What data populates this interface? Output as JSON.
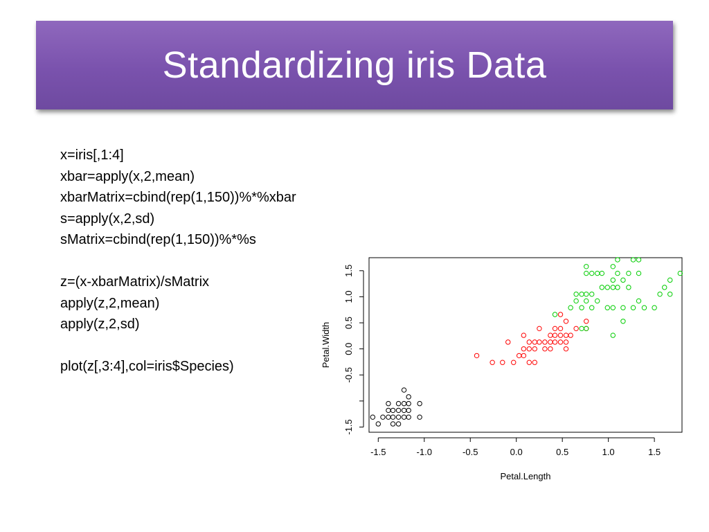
{
  "slide": {
    "title": "Standardizing iris Data",
    "code_lines": [
      "x=iris[,1:4]",
      "xbar=apply(x,2,mean)",
      "xbarMatrix=cbind(rep(1,150))%*%xbar",
      "s=apply(x,2,sd)",
      "sMatrix=cbind(rep(1,150))%*%s",
      "",
      "z=(x-xbarMatrix)/sMatrix",
      "apply(z,2,mean)",
      "apply(z,2,sd)",
      "",
      "plot(z[,3:4],col=iris$Species)"
    ]
  },
  "colors": {
    "title_bg": "#7a52ad",
    "setosa": "#000000",
    "versicolor": "#ff0000",
    "virginica": "#00cd00"
  },
  "chart_data": {
    "type": "scatter",
    "xlabel": "Petal.Length",
    "ylabel": "Petal.Width",
    "xlim": [
      -1.6,
      1.8
    ],
    "ylim": [
      -1.6,
      1.75
    ],
    "x_ticks": [
      -1.5,
      -1.0,
      -0.5,
      0.0,
      0.5,
      1.0,
      1.5
    ],
    "x_tick_labels": [
      "-1.5",
      "-1.0",
      "-0.5",
      "0.0",
      "0.5",
      "1.0",
      "1.5"
    ],
    "y_ticks": [
      -1.5,
      -1.0,
      -0.5,
      0.0,
      0.5,
      1.0,
      1.5
    ],
    "y_tick_labels": [
      "-1.5",
      "",
      "-0.5",
      "0.0",
      "0.5",
      "1.0",
      "1.5"
    ],
    "grid": false,
    "series": [
      {
        "color": "#000000",
        "points": [
          [
            -1.56,
            -1.31
          ],
          [
            -1.5,
            -1.44
          ],
          [
            -1.45,
            -1.31
          ],
          [
            -1.39,
            -1.31
          ],
          [
            -1.39,
            -1.18
          ],
          [
            -1.39,
            -1.05
          ],
          [
            -1.34,
            -1.31
          ],
          [
            -1.34,
            -1.44
          ],
          [
            -1.34,
            -1.18
          ],
          [
            -1.28,
            -1.31
          ],
          [
            -1.28,
            -1.44
          ],
          [
            -1.28,
            -1.18
          ],
          [
            -1.28,
            -1.05
          ],
          [
            -1.22,
            -1.31
          ],
          [
            -1.22,
            -1.18
          ],
          [
            -1.22,
            -1.05
          ],
          [
            -1.22,
            -0.79
          ],
          [
            -1.17,
            -1.31
          ],
          [
            -1.17,
            -1.18
          ],
          [
            -1.17,
            -1.05
          ],
          [
            -1.17,
            -0.92
          ],
          [
            -1.05,
            -1.31
          ],
          [
            -1.05,
            -1.05
          ]
        ]
      },
      {
        "color": "#ff0000",
        "points": [
          [
            -0.43,
            -0.13
          ],
          [
            -0.26,
            -0.26
          ],
          [
            -0.15,
            -0.26
          ],
          [
            -0.09,
            0.13
          ],
          [
            -0.03,
            -0.26
          ],
          [
            0.03,
            -0.13
          ],
          [
            0.08,
            0.0
          ],
          [
            0.08,
            -0.13
          ],
          [
            0.08,
            0.26
          ],
          [
            0.14,
            0.13
          ],
          [
            0.14,
            0.0
          ],
          [
            0.14,
            -0.26
          ],
          [
            0.2,
            0.13
          ],
          [
            0.2,
            0.0
          ],
          [
            0.2,
            -0.26
          ],
          [
            0.25,
            0.13
          ],
          [
            0.25,
            0.39
          ],
          [
            0.31,
            0.0
          ],
          [
            0.31,
            0.13
          ],
          [
            0.37,
            0.26
          ],
          [
            0.37,
            0.13
          ],
          [
            0.37,
            0.0
          ],
          [
            0.42,
            0.39
          ],
          [
            0.42,
            0.26
          ],
          [
            0.42,
            0.13
          ],
          [
            0.48,
            0.39
          ],
          [
            0.48,
            0.26
          ],
          [
            0.48,
            0.13
          ],
          [
            0.48,
            0.66
          ],
          [
            0.54,
            0.26
          ],
          [
            0.54,
            0.13
          ],
          [
            0.54,
            0.0
          ],
          [
            0.54,
            0.53
          ],
          [
            0.59,
            0.26
          ],
          [
            0.65,
            0.39
          ],
          [
            0.76,
            0.39
          ],
          [
            0.76,
            0.53
          ]
        ]
      },
      {
        "color": "#00cd00",
        "points": [
          [
            0.42,
            0.66
          ],
          [
            0.59,
            0.79
          ],
          [
            0.65,
            0.92
          ],
          [
            0.65,
            1.05
          ],
          [
            0.71,
            1.05
          ],
          [
            0.71,
            0.39
          ],
          [
            0.71,
            0.79
          ],
          [
            0.76,
            0.92
          ],
          [
            0.76,
            1.05
          ],
          [
            0.76,
            1.45
          ],
          [
            0.76,
            1.58
          ],
          [
            0.76,
            0.39
          ],
          [
            0.82,
            1.05
          ],
          [
            0.82,
            1.45
          ],
          [
            0.82,
            0.79
          ],
          [
            0.88,
            1.45
          ],
          [
            0.88,
            0.92
          ],
          [
            0.93,
            1.45
          ],
          [
            0.93,
            1.18
          ],
          [
            0.99,
            1.18
          ],
          [
            0.99,
            0.79
          ],
          [
            1.05,
            1.32
          ],
          [
            1.05,
            1.18
          ],
          [
            1.05,
            0.79
          ],
          [
            1.05,
            1.58
          ],
          [
            1.05,
            0.26
          ],
          [
            1.1,
            1.71
          ],
          [
            1.1,
            1.45
          ],
          [
            1.1,
            1.18
          ],
          [
            1.16,
            1.32
          ],
          [
            1.16,
            0.53
          ],
          [
            1.16,
            0.79
          ],
          [
            1.22,
            1.45
          ],
          [
            1.22,
            1.18
          ],
          [
            1.27,
            1.71
          ],
          [
            1.27,
            0.79
          ],
          [
            1.33,
            1.71
          ],
          [
            1.33,
            1.45
          ],
          [
            1.33,
            0.92
          ],
          [
            1.39,
            0.79
          ],
          [
            1.5,
            0.79
          ],
          [
            1.56,
            1.05
          ],
          [
            1.61,
            1.18
          ],
          [
            1.67,
            1.32
          ],
          [
            1.67,
            1.05
          ],
          [
            1.78,
            1.45
          ]
        ]
      }
    ]
  }
}
